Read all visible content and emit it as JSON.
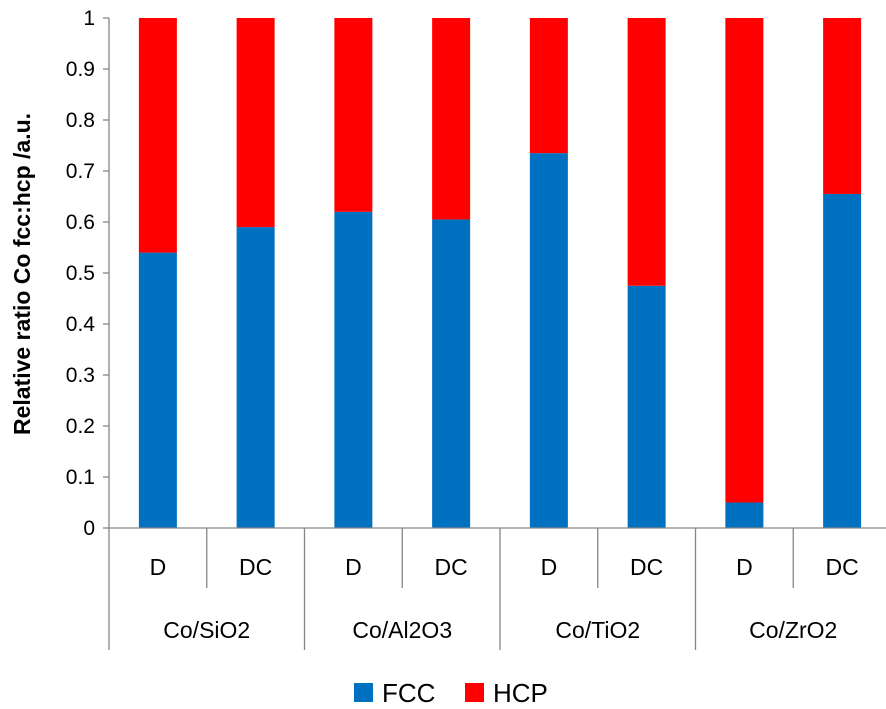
{
  "chart_data": {
    "type": "bar",
    "stacked": true,
    "ylabel": "Relative ratio Co fcc:hcp /a.u.",
    "ylim": [
      0,
      1
    ],
    "yticks": [
      "0",
      "0.1",
      "0.2",
      "0.3",
      "0.4",
      "0.5",
      "0.6",
      "0.7",
      "0.8",
      "0.9",
      "1"
    ],
    "categories": [
      "D",
      "DC",
      "D",
      "DC",
      "D",
      "DC",
      "D",
      "DC"
    ],
    "groups": [
      "Co/SiO2",
      "Co/Al2O3",
      "Co/TiO2",
      "Co/ZrO2"
    ],
    "series": [
      {
        "name": "FCC",
        "color": "#0070C0",
        "values": [
          0.54,
          0.59,
          0.62,
          0.605,
          0.735,
          0.475,
          0.05,
          0.655
        ]
      },
      {
        "name": "HCP",
        "color": "#FF0000",
        "values": [
          0.46,
          0.41,
          0.38,
          0.395,
          0.265,
          0.525,
          0.95,
          0.345
        ]
      }
    ],
    "legend": "bottom",
    "grid": false
  }
}
